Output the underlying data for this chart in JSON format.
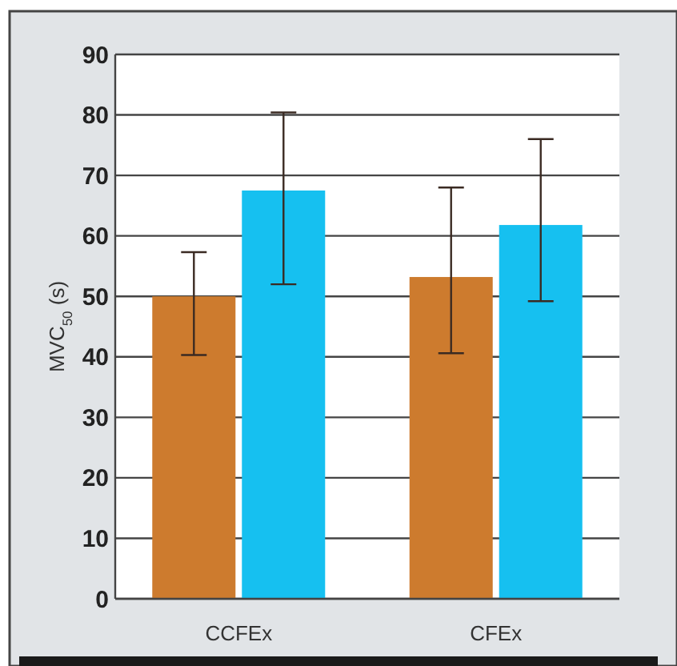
{
  "chart_data": {
    "type": "bar",
    "ylabel": "MVC$_{50}$ (s)",
    "categories": [
      "CCFEx",
      "CFEx"
    ],
    "series": [
      {
        "color": "#cd7b2e",
        "values": [
          50,
          53.2
        ],
        "errors": [
          [
            40.3,
            57.3
          ],
          [
            40.6,
            68
          ]
        ]
      },
      {
        "color": "#16c0f0",
        "values": [
          67.5,
          61.8
        ],
        "errors": [
          [
            52,
            80.4
          ],
          [
            49.2,
            76
          ]
        ]
      }
    ],
    "ylim": [
      0,
      90
    ],
    "yticks": [
      0,
      10,
      20,
      30,
      40,
      50,
      60,
      70,
      80,
      90
    ],
    "grid": "y"
  }
}
